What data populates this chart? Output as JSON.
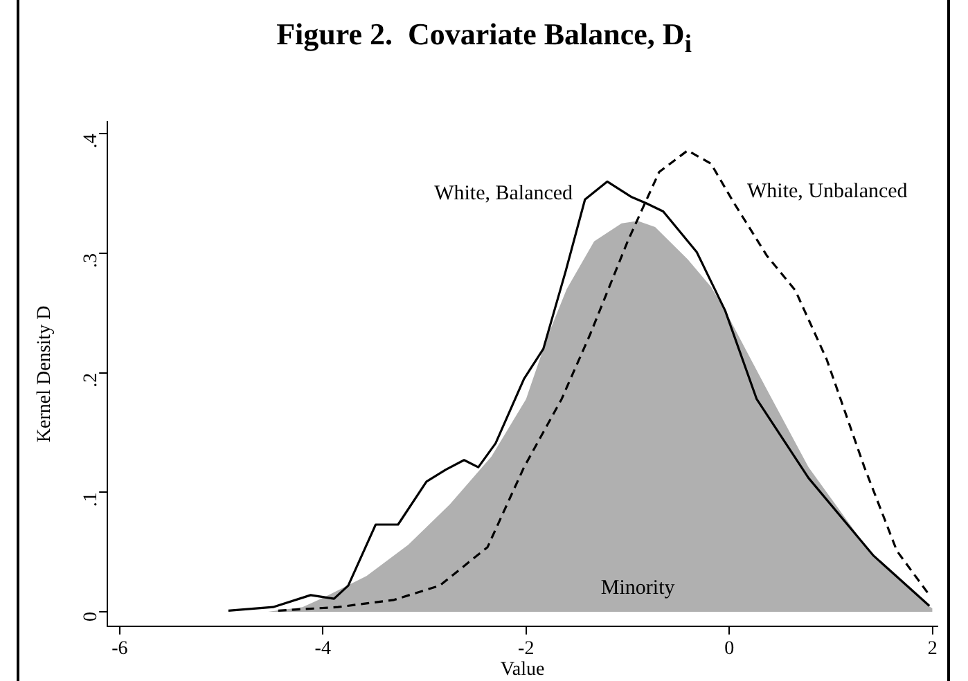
{
  "chart_data": {
    "type": "line",
    "title": "Figure 2.  Covariate Balance, D$_{i}$",
    "xlabel": "Value",
    "ylabel": "Kernel Density D",
    "xlim": [
      -6.12,
      2.05
    ],
    "ylim": [
      -0.012,
      0.41
    ],
    "xticks": [
      -6,
      -4,
      -2,
      0,
      2
    ],
    "yticks": [
      0,
      {
        "value": 0.1,
        "label": ".1"
      },
      {
        "value": 0.2,
        "label": ".2"
      },
      {
        "value": 0.3,
        "label": ".3"
      },
      {
        "value": 0.4,
        "label": ".4"
      }
    ],
    "grid": false,
    "legend": false,
    "marker": "none",
    "series": [
      {
        "name": "Minority",
        "type": "area",
        "color": "#b0b0b0",
        "x": [
          -4.54,
          -4.2,
          -3.99,
          -3.57,
          -3.16,
          -2.75,
          -2.34,
          -2.0,
          -1.79,
          -1.6,
          -1.33,
          -1.06,
          -0.9,
          -0.73,
          -0.41,
          -0.18,
          -0.04,
          0.37,
          0.78,
          1.41,
          1.96,
          2.0
        ],
        "values": [
          0,
          0.004,
          0.012,
          0.03,
          0.056,
          0.09,
          0.13,
          0.178,
          0.23,
          0.27,
          0.31,
          0.325,
          0.327,
          0.322,
          0.295,
          0.272,
          0.252,
          0.186,
          0.121,
          0.047,
          0.005,
          0.003
        ]
      },
      {
        "name": "White, Balanced",
        "type": "line",
        "color": "#000000",
        "line_style": "solid",
        "x": [
          -4.93,
          -4.49,
          -4.12,
          -3.89,
          -3.75,
          -3.48,
          -3.26,
          -2.98,
          -2.79,
          -2.61,
          -2.47,
          -2.3,
          -2.02,
          -1.83,
          -1.61,
          -1.42,
          -1.2,
          -0.96,
          -0.82,
          -0.65,
          -0.32,
          -0.04,
          0.27,
          0.78,
          1.42,
          1.97
        ],
        "values": [
          0.001,
          0.004,
          0.014,
          0.011,
          0.022,
          0.073,
          0.073,
          0.109,
          0.119,
          0.127,
          0.121,
          0.141,
          0.195,
          0.22,
          0.285,
          0.345,
          0.36,
          0.347,
          0.342,
          0.335,
          0.301,
          0.252,
          0.178,
          0.112,
          0.047,
          0.005
        ]
      },
      {
        "name": "White, Unbalanced",
        "type": "line",
        "color": "#000000",
        "line_style": "dashed",
        "x": [
          -4.44,
          -3.85,
          -3.3,
          -2.85,
          -2.38,
          -2.02,
          -1.65,
          -1.37,
          -1.0,
          -0.69,
          -0.41,
          -0.18,
          0.04,
          0.37,
          0.65,
          0.96,
          1.33,
          1.65,
          1.97
        ],
        "values": [
          0.001,
          0.004,
          0.01,
          0.022,
          0.054,
          0.121,
          0.178,
          0.232,
          0.31,
          0.368,
          0.386,
          0.375,
          0.343,
          0.298,
          0.269,
          0.211,
          0.121,
          0.051,
          0.014
        ]
      }
    ]
  }
}
